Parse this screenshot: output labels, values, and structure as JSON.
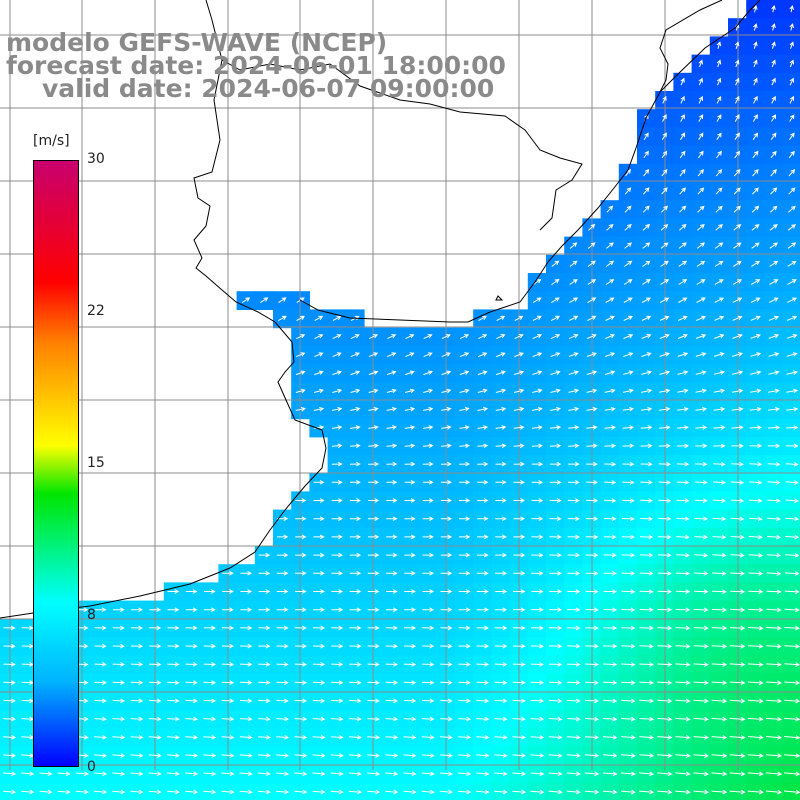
{
  "title": {
    "line1": "modelo GEFS-WAVE (NCEP)",
    "line2": "forecast date: 2024-06-01 18:00:00",
    "line3": "valid date: 2024-06-07 09:00:00"
  },
  "colorbar": {
    "unit": "[m/s]",
    "min": 0,
    "max": 30,
    "ticks": [
      "30",
      "22",
      "15",
      "8",
      "0"
    ]
  },
  "colors": {
    "land": "#ffffff",
    "grid": "#8c8c8c",
    "coast": "#000000",
    "arrow": "#ffffff",
    "title": "#8a8a8a"
  },
  "map": {
    "variable": "wind speed",
    "unit": "m/s",
    "arrow_color": "white"
  }
}
